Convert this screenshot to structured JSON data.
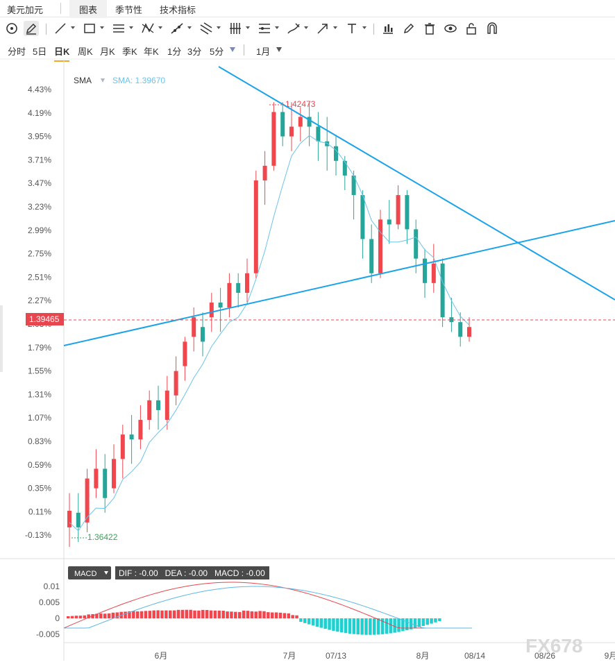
{
  "tabs": {
    "symbol": "美元加元",
    "chart": "图表",
    "seasonal": "季节性",
    "indicators": "技术指标"
  },
  "periods": [
    "分时",
    "5日",
    "日K",
    "周K",
    "月K",
    "季K",
    "年K",
    "1分",
    "3分",
    "5分"
  ],
  "range_label": "1月",
  "icons": [
    "circle-tool-icon",
    "pencil-icon",
    "line-icon",
    "rectangle-icon",
    "parallel-lines-icon",
    "pattern-icon",
    "ray-icon",
    "fork-icon",
    "bars-icon",
    "lines-icon",
    "brush-icon",
    "arrow-icon",
    "text-icon",
    "chart-icon",
    "draw-icon",
    "trash-icon",
    "eye-icon",
    "lock-icon",
    "magnet-icon"
  ],
  "sma": {
    "label": "SMA",
    "value_label": "SMA: 1.39670"
  },
  "price": {
    "current": "1.39465",
    "high_label": "1.42473",
    "low_label": "1.36422"
  },
  "macd": {
    "name": "MACD",
    "values": "DIF : -0.00   DEA : -0.00   MACD : -0.00"
  },
  "watermark": "FX678",
  "colors": {
    "up": "#f0464e",
    "down": "#26a69a",
    "trend": "#1aa3e8",
    "sma": "#6cc3ec",
    "dif": "#e8464e",
    "dea": "#5bb8e6",
    "macd_neg": "#1ed0d0"
  },
  "chart_data": {
    "type": "candlestick",
    "y_axis_labels": [
      "4.43%",
      "4.19%",
      "3.95%",
      "3.71%",
      "3.47%",
      "3.23%",
      "2.99%",
      "2.75%",
      "2.51%",
      "2.27%",
      "2.03%",
      "1.79%",
      "1.55%",
      "1.31%",
      "1.07%",
      "0.83%",
      "0.59%",
      "0.35%",
      "0.11%",
      "-0.13%"
    ],
    "x_axis_labels": [
      "6月",
      "7月",
      "07/13",
      "8月",
      "08/14",
      "08/26",
      "9月"
    ],
    "macd_axis_labels": [
      "0.01",
      "0.005",
      "0",
      "-0.005"
    ],
    "candles_pct": [
      [
        -0.05,
        0.12,
        -0.25,
        0.3
      ],
      [
        0.1,
        -0.05,
        -0.2,
        0.3
      ],
      [
        0.0,
        0.45,
        -0.1,
        0.55
      ],
      [
        0.35,
        0.55,
        0.25,
        0.75
      ],
      [
        0.55,
        0.25,
        0.1,
        0.7
      ],
      [
        0.35,
        0.65,
        0.3,
        0.8
      ],
      [
        0.65,
        0.9,
        0.45,
        1.0
      ],
      [
        0.9,
        0.85,
        0.6,
        1.1
      ],
      [
        0.85,
        1.05,
        0.75,
        1.2
      ],
      [
        1.05,
        1.25,
        0.95,
        1.35
      ],
      [
        1.25,
        1.15,
        0.95,
        1.4
      ],
      [
        1.05,
        1.35,
        0.95,
        1.5
      ],
      [
        1.3,
        1.55,
        1.2,
        1.7
      ],
      [
        1.6,
        1.85,
        1.45,
        1.9
      ],
      [
        1.9,
        2.1,
        1.75,
        2.2
      ],
      [
        2.0,
        1.85,
        1.7,
        2.15
      ],
      [
        2.1,
        2.25,
        1.95,
        2.35
      ],
      [
        2.25,
        2.2,
        1.95,
        2.4
      ],
      [
        2.2,
        2.45,
        2.1,
        2.55
      ],
      [
        2.45,
        2.35,
        2.2,
        2.55
      ],
      [
        2.35,
        2.55,
        2.25,
        2.7
      ],
      [
        2.55,
        3.5,
        2.5,
        3.6
      ],
      [
        3.5,
        3.65,
        3.25,
        3.8
      ],
      [
        3.65,
        4.2,
        3.6,
        4.3
      ],
      [
        4.2,
        3.95,
        3.85,
        4.3
      ],
      [
        3.95,
        4.05,
        3.8,
        4.3
      ],
      [
        4.05,
        4.15,
        3.9,
        4.25
      ],
      [
        4.15,
        4.05,
        3.85,
        4.3
      ],
      [
        4.05,
        3.9,
        3.7,
        4.2
      ],
      [
        3.9,
        3.85,
        3.6,
        4.15
      ],
      [
        3.85,
        3.7,
        3.55,
        3.95
      ],
      [
        3.7,
        3.55,
        3.4,
        3.75
      ],
      [
        3.55,
        3.35,
        3.1,
        3.6
      ],
      [
        3.35,
        2.9,
        2.7,
        3.4
      ],
      [
        2.9,
        2.55,
        2.45,
        3.05
      ],
      [
        2.55,
        3.1,
        2.5,
        3.2
      ],
      [
        3.1,
        3.05,
        2.85,
        3.3
      ],
      [
        3.05,
        3.35,
        3.0,
        3.45
      ],
      [
        3.35,
        3.0,
        2.85,
        3.4
      ],
      [
        3.0,
        2.7,
        2.55,
        3.1
      ],
      [
        2.7,
        2.45,
        2.3,
        2.8
      ],
      [
        2.45,
        2.65,
        2.35,
        2.85
      ],
      [
        2.65,
        2.1,
        2.0,
        2.7
      ],
      [
        2.1,
        2.05,
        1.95,
        2.3
      ],
      [
        2.05,
        1.9,
        1.8,
        2.15
      ],
      [
        1.9,
        2.0,
        1.85,
        2.1
      ]
    ]
  }
}
